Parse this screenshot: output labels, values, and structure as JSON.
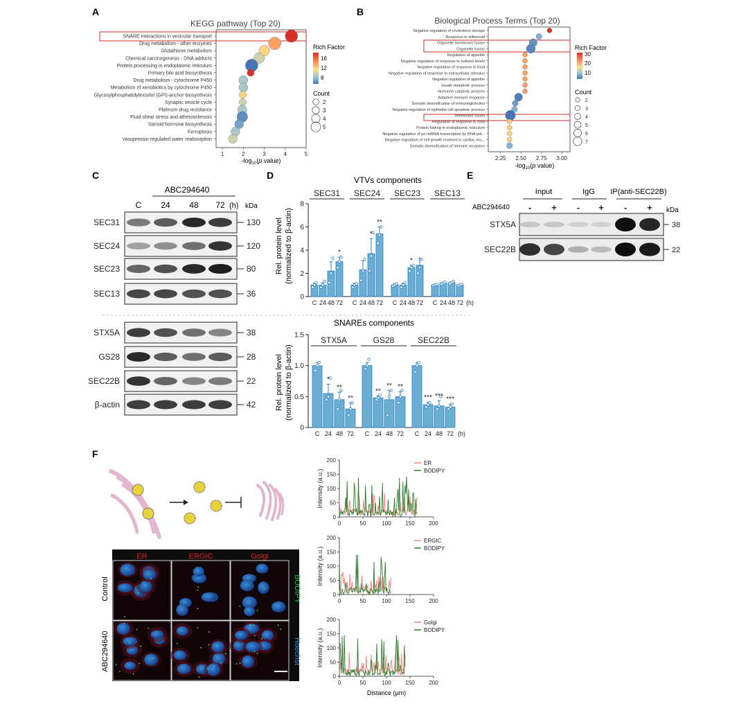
{
  "panel_letters": [
    "A",
    "B",
    "C",
    "D",
    "E",
    "F"
  ],
  "panel_a": {
    "title": "KEGG pathway (Top 20)",
    "xlabel": "-log10(p value)",
    "legend_rich_title": "Rich Factor",
    "legend_rich_ticks": [
      "16",
      "12",
      "8"
    ],
    "legend_count_title": "Count",
    "legend_count_values": [
      "2",
      "3",
      "4",
      "5"
    ],
    "xticks": [
      "1",
      "2",
      "3",
      "4",
      "5"
    ]
  },
  "panel_b": {
    "title": "Biological Process Terms (Top 20)",
    "xlabel": "-log10(p value)",
    "legend_rich_title": "Rich Factor",
    "legend_rich_ticks": [
      "30",
      "20",
      "10"
    ],
    "legend_count_title": "Count",
    "legend_count_values": [
      "2",
      "3",
      "4",
      "5",
      "6",
      "7"
    ],
    "xticks": [
      "2.25",
      "2.50",
      "2.75",
      "3.00"
    ]
  },
  "panel_c": {
    "treatment": "ABC294640",
    "lanes": [
      "C",
      "24",
      "48",
      "72"
    ],
    "time_unit": "(h)",
    "kda_label": "kDa",
    "blots": [
      {
        "name": "SEC31",
        "kda": "130"
      },
      {
        "name": "SEC24",
        "kda": "120"
      },
      {
        "name": "SEC23",
        "kda": "80"
      },
      {
        "name": "SEC13",
        "kda": "36"
      },
      {
        "name": "STX5A",
        "kda": "38"
      },
      {
        "name": "GS28",
        "kda": "28"
      },
      {
        "name": "SEC22B",
        "kda": "22"
      },
      {
        "name": "β-actin",
        "kda": "42"
      }
    ]
  },
  "panel_d": {
    "top_title": "VTVs components",
    "bottom_title": "SNAREs components",
    "ylabel_1": "Rel. protein level",
    "ylabel_2": "(normalized to β-actin)",
    "x_categories": [
      "C",
      "24",
      "48",
      "72"
    ],
    "x_unit": "(h)",
    "top_yticks": [
      "0",
      "2",
      "4",
      "6",
      "8"
    ],
    "bottom_yticks": [
      "0",
      "0.5",
      "1.0",
      "1.5"
    ]
  },
  "panel_e": {
    "groups": [
      "Input",
      "IgG",
      "IP(anti-SEC22B)"
    ],
    "treatment": "ABC294640",
    "signs": [
      "-",
      "+",
      "-",
      "+",
      "-",
      "+"
    ],
    "kda_label": "kDa",
    "blots": [
      {
        "name": "STX5A",
        "kda": "38"
      },
      {
        "name": "SEC22B",
        "kda": "22"
      }
    ]
  },
  "panel_f": {
    "micro_columns": [
      "ER",
      "ERGIC",
      "Golgi"
    ],
    "micro_rows": [
      "Control",
      "ABC294640"
    ],
    "side_labels": [
      "BODIPY",
      "Hoechst"
    ],
    "y_label": "Intensity (a.u.)",
    "x_label": "Distance (μm)",
    "plots": [
      {
        "legend": [
          "ER",
          "BODIPY"
        ]
      },
      {
        "legend": [
          "ERGIC",
          "BODIPY"
        ]
      },
      {
        "legend": [
          "Golgi",
          "BODIPY"
        ]
      }
    ],
    "yticks": [
      "0",
      "50",
      "100",
      "150",
      "200"
    ],
    "xticks": [
      "0",
      "50",
      "100",
      "150",
      "200"
    ]
  },
  "chart_data": [
    {
      "type": "scatter",
      "title": "KEGG pathway (Top 20)",
      "xlabel": "-log10(p value)",
      "xlim": [
        0.7,
        5
      ],
      "terms": [
        "SNARE interactions in vesicular transport",
        "Drug metabolism - other enzymes",
        "Glutathione metabolism",
        "Chemical carcinogenesis - DNA adducts",
        "Protein processing in endoplasmic reticulum",
        "Primary bile acid biosynthesis",
        "Drug metabolism - cytochrome P450",
        "Metabolism of xenobiotics by cytochrome P450",
        "Glycosylphosphatidylinositol (GPI)-anchor biosynthesis",
        "Synaptic vesicle cycle",
        "Platinum drug resistance",
        "Fluid shear stress and atherosclerosis",
        "Steroid hormone biosynthesis",
        "Ferroptosis",
        "Vasopressin-regulated water reabsorption"
      ],
      "x": [
        4.3,
        3.5,
        3.0,
        2.75,
        2.4,
        2.35,
        2.0,
        2.0,
        1.98,
        1.97,
        1.95,
        1.95,
        1.8,
        1.62,
        1.5
      ],
      "rich_factor": [
        17,
        13,
        11,
        9,
        4,
        17,
        8,
        8,
        11,
        9,
        8,
        5,
        6,
        8,
        9
      ],
      "count": [
        5,
        5,
        4,
        4,
        5,
        2,
        3,
        3,
        2,
        2,
        3,
        4,
        3,
        3,
        3
      ]
    },
    {
      "type": "scatter",
      "title": "Biological Process Terms (Top 20)",
      "xlabel": "-log10(p value)",
      "xlim": [
        2.1,
        3.1
      ],
      "terms": [
        "Negative regulation of cholesterol storage",
        "Response to stilbenoid",
        "Organelle membrane fusion",
        "Organelle fusion",
        "Regulation of appetite",
        "Negative regulation of response to nutrient levels",
        "Negative regulation of response to food",
        "Negative regulation of response to extracellular stimulus",
        "Negative regulation of appetite",
        "Insulin metabolic process",
        "Hormone catabolic process",
        "Adaptive immune response",
        "Somatic diversification of immunoglobulins",
        "Negative regulation of epithelial cell apoptotic process",
        "Membrane fusion",
        "Regulation of response to food",
        "Protein folding in endoplasmic reticulum",
        "Negative regulation of pri-miRNA transcription by RNA pol...",
        "Negative regulation of cell growth involved in cardiac mu...",
        "Somatic diversification of immune receptors"
      ],
      "x": [
        2.85,
        2.72,
        2.65,
        2.62,
        2.55,
        2.55,
        2.55,
        2.55,
        2.55,
        2.55,
        2.55,
        2.47,
        2.43,
        2.42,
        2.37,
        2.36,
        2.36,
        2.36,
        2.36,
        2.36
      ],
      "rich_factor": [
        31,
        8,
        5,
        4,
        22,
        22,
        22,
        22,
        22,
        22,
        22,
        3,
        6,
        8,
        2,
        18,
        18,
        18,
        18,
        8
      ],
      "count": [
        2,
        3,
        5,
        6,
        2,
        2,
        2,
        2,
        2,
        2,
        2,
        5,
        3,
        3,
        7,
        2,
        2,
        2,
        2,
        3
      ]
    },
    {
      "type": "bar",
      "title": "VTVs components",
      "ylabel": "Rel. protein level (normalized to β-actin)",
      "categories": [
        "C",
        "24",
        "48",
        "72"
      ],
      "ylim": [
        0,
        8
      ],
      "series": [
        {
          "name": "SEC31",
          "values": [
            1.0,
            1.0,
            2.2,
            3.0
          ],
          "errors": [
            0.15,
            0.2,
            0.8,
            0.4
          ],
          "dots": [
            [
              0.8,
              1.0,
              1.2
            ],
            [
              0.8,
              1.0,
              1.3
            ],
            [
              1.2,
              2.0,
              3.3
            ],
            [
              2.5,
              3.0,
              3.4
            ]
          ],
          "sig": [
            "",
            "",
            "",
            "*"
          ]
        },
        {
          "name": "SEC24",
          "values": [
            1.0,
            2.3,
            3.7,
            5.4
          ],
          "errors": [
            0.15,
            0.8,
            1.3,
            0.6
          ],
          "dots": [
            [
              0.8,
              1.0,
              1.1
            ],
            [
              1.4,
              2.2,
              3.2
            ],
            [
              2.2,
              3.5,
              5.5
            ],
            [
              4.6,
              5.3,
              6.0
            ]
          ],
          "sig": [
            "",
            "",
            "*",
            "**"
          ]
        },
        {
          "name": "SEC23",
          "values": [
            1.0,
            1.0,
            2.5,
            2.7
          ],
          "errors": [
            0.1,
            0.15,
            0.2,
            0.6
          ],
          "dots": [
            [
              0.9,
              1.0,
              1.1
            ],
            [
              0.8,
              1.0,
              1.2
            ],
            [
              2.2,
              2.5,
              2.7
            ],
            [
              2.0,
              2.5,
              3.2
            ]
          ],
          "sig": [
            "",
            "",
            "*",
            ""
          ]
        },
        {
          "name": "SEC13",
          "values": [
            1.0,
            1.15,
            1.2,
            1.0
          ],
          "errors": [
            0.05,
            0.08,
            0.08,
            0.05
          ],
          "dots": [
            [
              0.95,
              1.0,
              1.05
            ],
            [
              1.05,
              1.15,
              1.25
            ],
            [
              1.1,
              1.2,
              1.3
            ],
            [
              0.95,
              1.0,
              1.05
            ]
          ],
          "sig": [
            "",
            "",
            "",
            ""
          ]
        }
      ]
    },
    {
      "type": "bar",
      "title": "SNAREs components",
      "ylabel": "Rel. protein level (normalized to β-actin)",
      "categories": [
        "C",
        "24",
        "48",
        "72"
      ],
      "ylim": [
        0,
        1.5
      ],
      "series": [
        {
          "name": "STX5A",
          "values": [
            1.0,
            0.55,
            0.45,
            0.3
          ],
          "errors": [
            0.05,
            0.15,
            0.12,
            0.1
          ],
          "dots": [
            [
              0.92,
              1.0,
              1.05
            ],
            [
              0.45,
              0.5,
              0.8
            ],
            [
              0.3,
              0.45,
              0.6
            ],
            [
              0.2,
              0.3,
              0.4
            ]
          ],
          "sig": [
            "",
            "*",
            "**",
            "**"
          ]
        },
        {
          "name": "GS28",
          "values": [
            1.0,
            0.48,
            0.45,
            0.5
          ],
          "errors": [
            0.05,
            0.03,
            0.15,
            0.08
          ],
          "dots": [
            [
              0.95,
              1.0,
              1.1
            ],
            [
              0.45,
              0.48,
              0.52
            ],
            [
              0.2,
              0.5,
              0.6
            ],
            [
              0.4,
              0.5,
              0.6
            ]
          ],
          "sig": [
            "",
            "**",
            "**",
            "**"
          ]
        },
        {
          "name": "SEC22B",
          "values": [
            1.0,
            0.37,
            0.35,
            0.33
          ],
          "errors": [
            0.05,
            0.04,
            0.08,
            0.05
          ],
          "dots": [
            [
              0.9,
              1.0,
              1.05
            ],
            [
              0.33,
              0.37,
              0.4
            ],
            [
              0.3,
              0.35,
              0.5
            ],
            [
              0.3,
              0.33,
              0.38
            ]
          ],
          "sig": [
            "",
            "***",
            "***",
            "***"
          ]
        }
      ]
    }
  ]
}
